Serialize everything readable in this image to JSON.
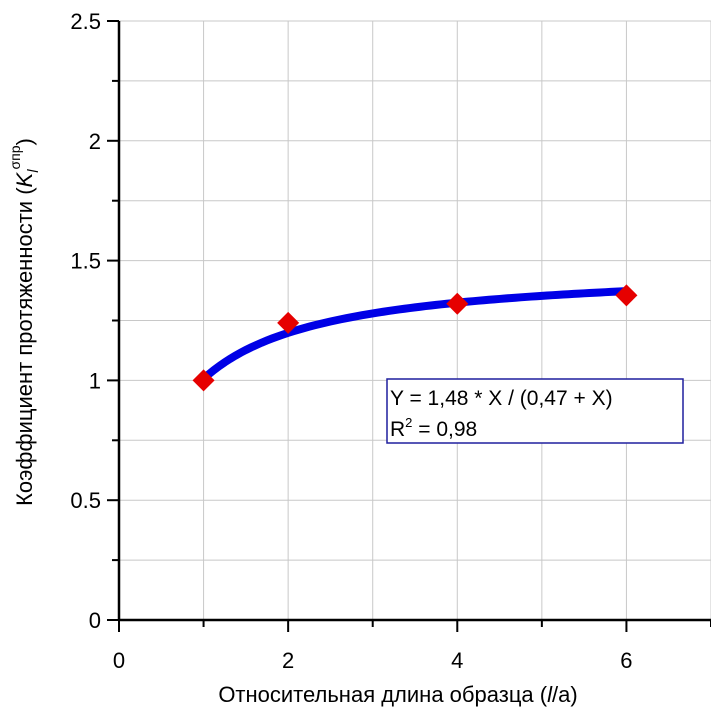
{
  "chart_data": {
    "type": "scatter",
    "x_axis": {
      "label_prefix": "Относительная длина образца (",
      "label_var": "l",
      "label_suffix": "/a)",
      "range": [
        0,
        7
      ],
      "ticks": [
        0,
        2,
        4,
        6
      ],
      "tick_labels": [
        "0",
        "2",
        "4",
        "6"
      ]
    },
    "y_axis": {
      "label_prefix": "Коэффициент протяженности (",
      "label_var": "K",
      "label_sub": "l",
      "label_sup": "σпр",
      "label_suffix": ")",
      "range": [
        0,
        2.5
      ],
      "ticks": [
        0,
        0.5,
        1,
        1.5,
        2,
        2.5
      ],
      "tick_labels": [
        "0",
        "0.5",
        "1",
        "1.5",
        "2",
        "2.5"
      ]
    },
    "grid": true,
    "series": [
      {
        "kind": "points",
        "marker": "diamond",
        "color": "#e60000",
        "x": [
          1,
          2,
          4,
          6
        ],
        "y": [
          1.0,
          1.24,
          1.32,
          1.355
        ]
      },
      {
        "kind": "fit",
        "color": "#0000e6",
        "model": {
          "a": 1.48,
          "b": 0.47
        },
        "x_range": [
          1,
          6
        ]
      }
    ],
    "annotation": {
      "equation": "Y = 1,48 * X / (0,47 + X)",
      "r2_prefix": "R",
      "r2_sup": "2",
      "r2_value": " = 0,98",
      "border_color": "#1f1f9e"
    }
  }
}
